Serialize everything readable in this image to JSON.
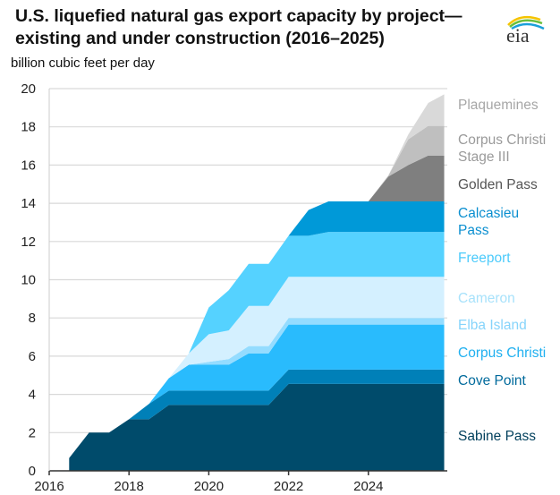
{
  "chart_data": {
    "type": "area",
    "stacked": true,
    "title": "U.S. liquefied natural gas export capacity by project—existing and under construction (2016–2025)",
    "ylabel": "billion cubic feet per day",
    "xlabel": "",
    "ylim": [
      0,
      20
    ],
    "xlim": [
      2016,
      2025.9
    ],
    "yticks": [
      "0",
      "2",
      "4",
      "6",
      "8",
      "10",
      "12",
      "14",
      "16",
      "18",
      "20"
    ],
    "xticks": [
      "2016",
      "2018",
      "2020",
      "2022",
      "2024"
    ],
    "grid": true,
    "legend": "right, labels beside areas",
    "x": [
      2016.5,
      2017,
      2017.5,
      2018,
      2018.5,
      2019,
      2019.5,
      2020,
      2020.5,
      2021,
      2021.5,
      2022,
      2022.5,
      2023,
      2023.5,
      2024,
      2024.5,
      2025,
      2025.5,
      2025.9
    ],
    "series": [
      {
        "name": "Sabine Pass",
        "color": "#004b6b",
        "label_color": "#003f5c",
        "values": [
          0.67,
          2.0,
          2.0,
          2.7,
          2.7,
          3.45,
          3.45,
          3.45,
          3.45,
          3.45,
          3.45,
          4.55,
          4.55,
          4.55,
          4.55,
          4.55,
          4.55,
          4.55,
          4.55,
          4.55
        ]
      },
      {
        "name": "Cove Point",
        "color": "#0080b8",
        "label_color": "#006a9c",
        "values": [
          0,
          0,
          0,
          0,
          0.8,
          0.75,
          0.75,
          0.75,
          0.75,
          0.75,
          0.75,
          0.75,
          0.75,
          0.75,
          0.75,
          0.75,
          0.75,
          0.75,
          0.75,
          0.75
        ]
      },
      {
        "name": "Corpus Christi",
        "color": "#29bbfd",
        "label_color": "#1fb0f0",
        "values": [
          0,
          0,
          0,
          0,
          0,
          0.65,
          1.35,
          1.35,
          1.35,
          1.95,
          1.95,
          2.35,
          2.35,
          2.35,
          2.35,
          2.35,
          2.35,
          2.35,
          2.35,
          2.35
        ]
      },
      {
        "name": "Elba Island",
        "color": "#94dcff",
        "label_color": "#86d4fb",
        "values": [
          0,
          0,
          0,
          0,
          0,
          0,
          0,
          0.15,
          0.3,
          0.38,
          0.38,
          0.35,
          0.35,
          0.35,
          0.35,
          0.35,
          0.35,
          0.35,
          0.35,
          0.35
        ]
      },
      {
        "name": "Cameron",
        "color": "#d4f0ff",
        "label_color": "#a8e2fb",
        "values": [
          0,
          0,
          0,
          0,
          0,
          0,
          0.6,
          1.45,
          1.5,
          2.1,
          2.1,
          2.15,
          2.15,
          2.15,
          2.15,
          2.15,
          2.15,
          2.15,
          2.15,
          2.15
        ]
      },
      {
        "name": "Freeport",
        "color": "#55d2ff",
        "label_color": "#4ccbfb",
        "values": [
          0,
          0,
          0,
          0,
          0,
          0,
          0,
          1.4,
          2.1,
          2.2,
          2.2,
          2.15,
          2.15,
          2.35,
          2.35,
          2.35,
          2.35,
          2.35,
          2.35,
          2.35
        ]
      },
      {
        "name": "Calcasieu Pass",
        "color": "#0099d8",
        "label_color": "#0b8fd0",
        "values": [
          0,
          0,
          0,
          0,
          0,
          0,
          0,
          0,
          0,
          0,
          0,
          0,
          1.35,
          1.6,
          1.6,
          1.6,
          1.6,
          1.6,
          1.6,
          1.6
        ]
      },
      {
        "name": "Golden Pass",
        "color": "#7f7f7f",
        "label_color": "#555555",
        "values": [
          0,
          0,
          0,
          0,
          0,
          0,
          0,
          0,
          0,
          0,
          0,
          0,
          0,
          0,
          0,
          0,
          1.3,
          1.9,
          2.4,
          2.4
        ]
      },
      {
        "name": "Corpus Christi Stage III",
        "color": "#bfbfbf",
        "label_color": "#9a9a9a",
        "values": [
          0,
          0,
          0,
          0,
          0,
          0,
          0,
          0,
          0,
          0,
          0,
          0,
          0,
          0,
          0,
          0,
          0.05,
          1.35,
          1.55,
          1.55
        ]
      },
      {
        "name": "Plaquemines",
        "color": "#d9d9d9",
        "label_color": "#a6a6a6",
        "values": [
          0,
          0,
          0,
          0,
          0,
          0,
          0,
          0,
          0,
          0,
          0,
          0,
          0,
          0,
          0,
          0,
          0,
          0.25,
          1.2,
          1.65
        ]
      }
    ],
    "series_labels": [
      [
        "Sabine Pass"
      ],
      [
        "Cove Point"
      ],
      [
        "Corpus Christi"
      ],
      [
        "Elba Island"
      ],
      [
        "Cameron"
      ],
      [
        "Freeport"
      ],
      [
        "Calcasieu",
        "Pass"
      ],
      [
        "Golden Pass"
      ],
      [
        "Corpus Christi",
        "Stage III"
      ],
      [
        "Plaquemines"
      ]
    ]
  },
  "logo": {
    "text": "eia"
  }
}
